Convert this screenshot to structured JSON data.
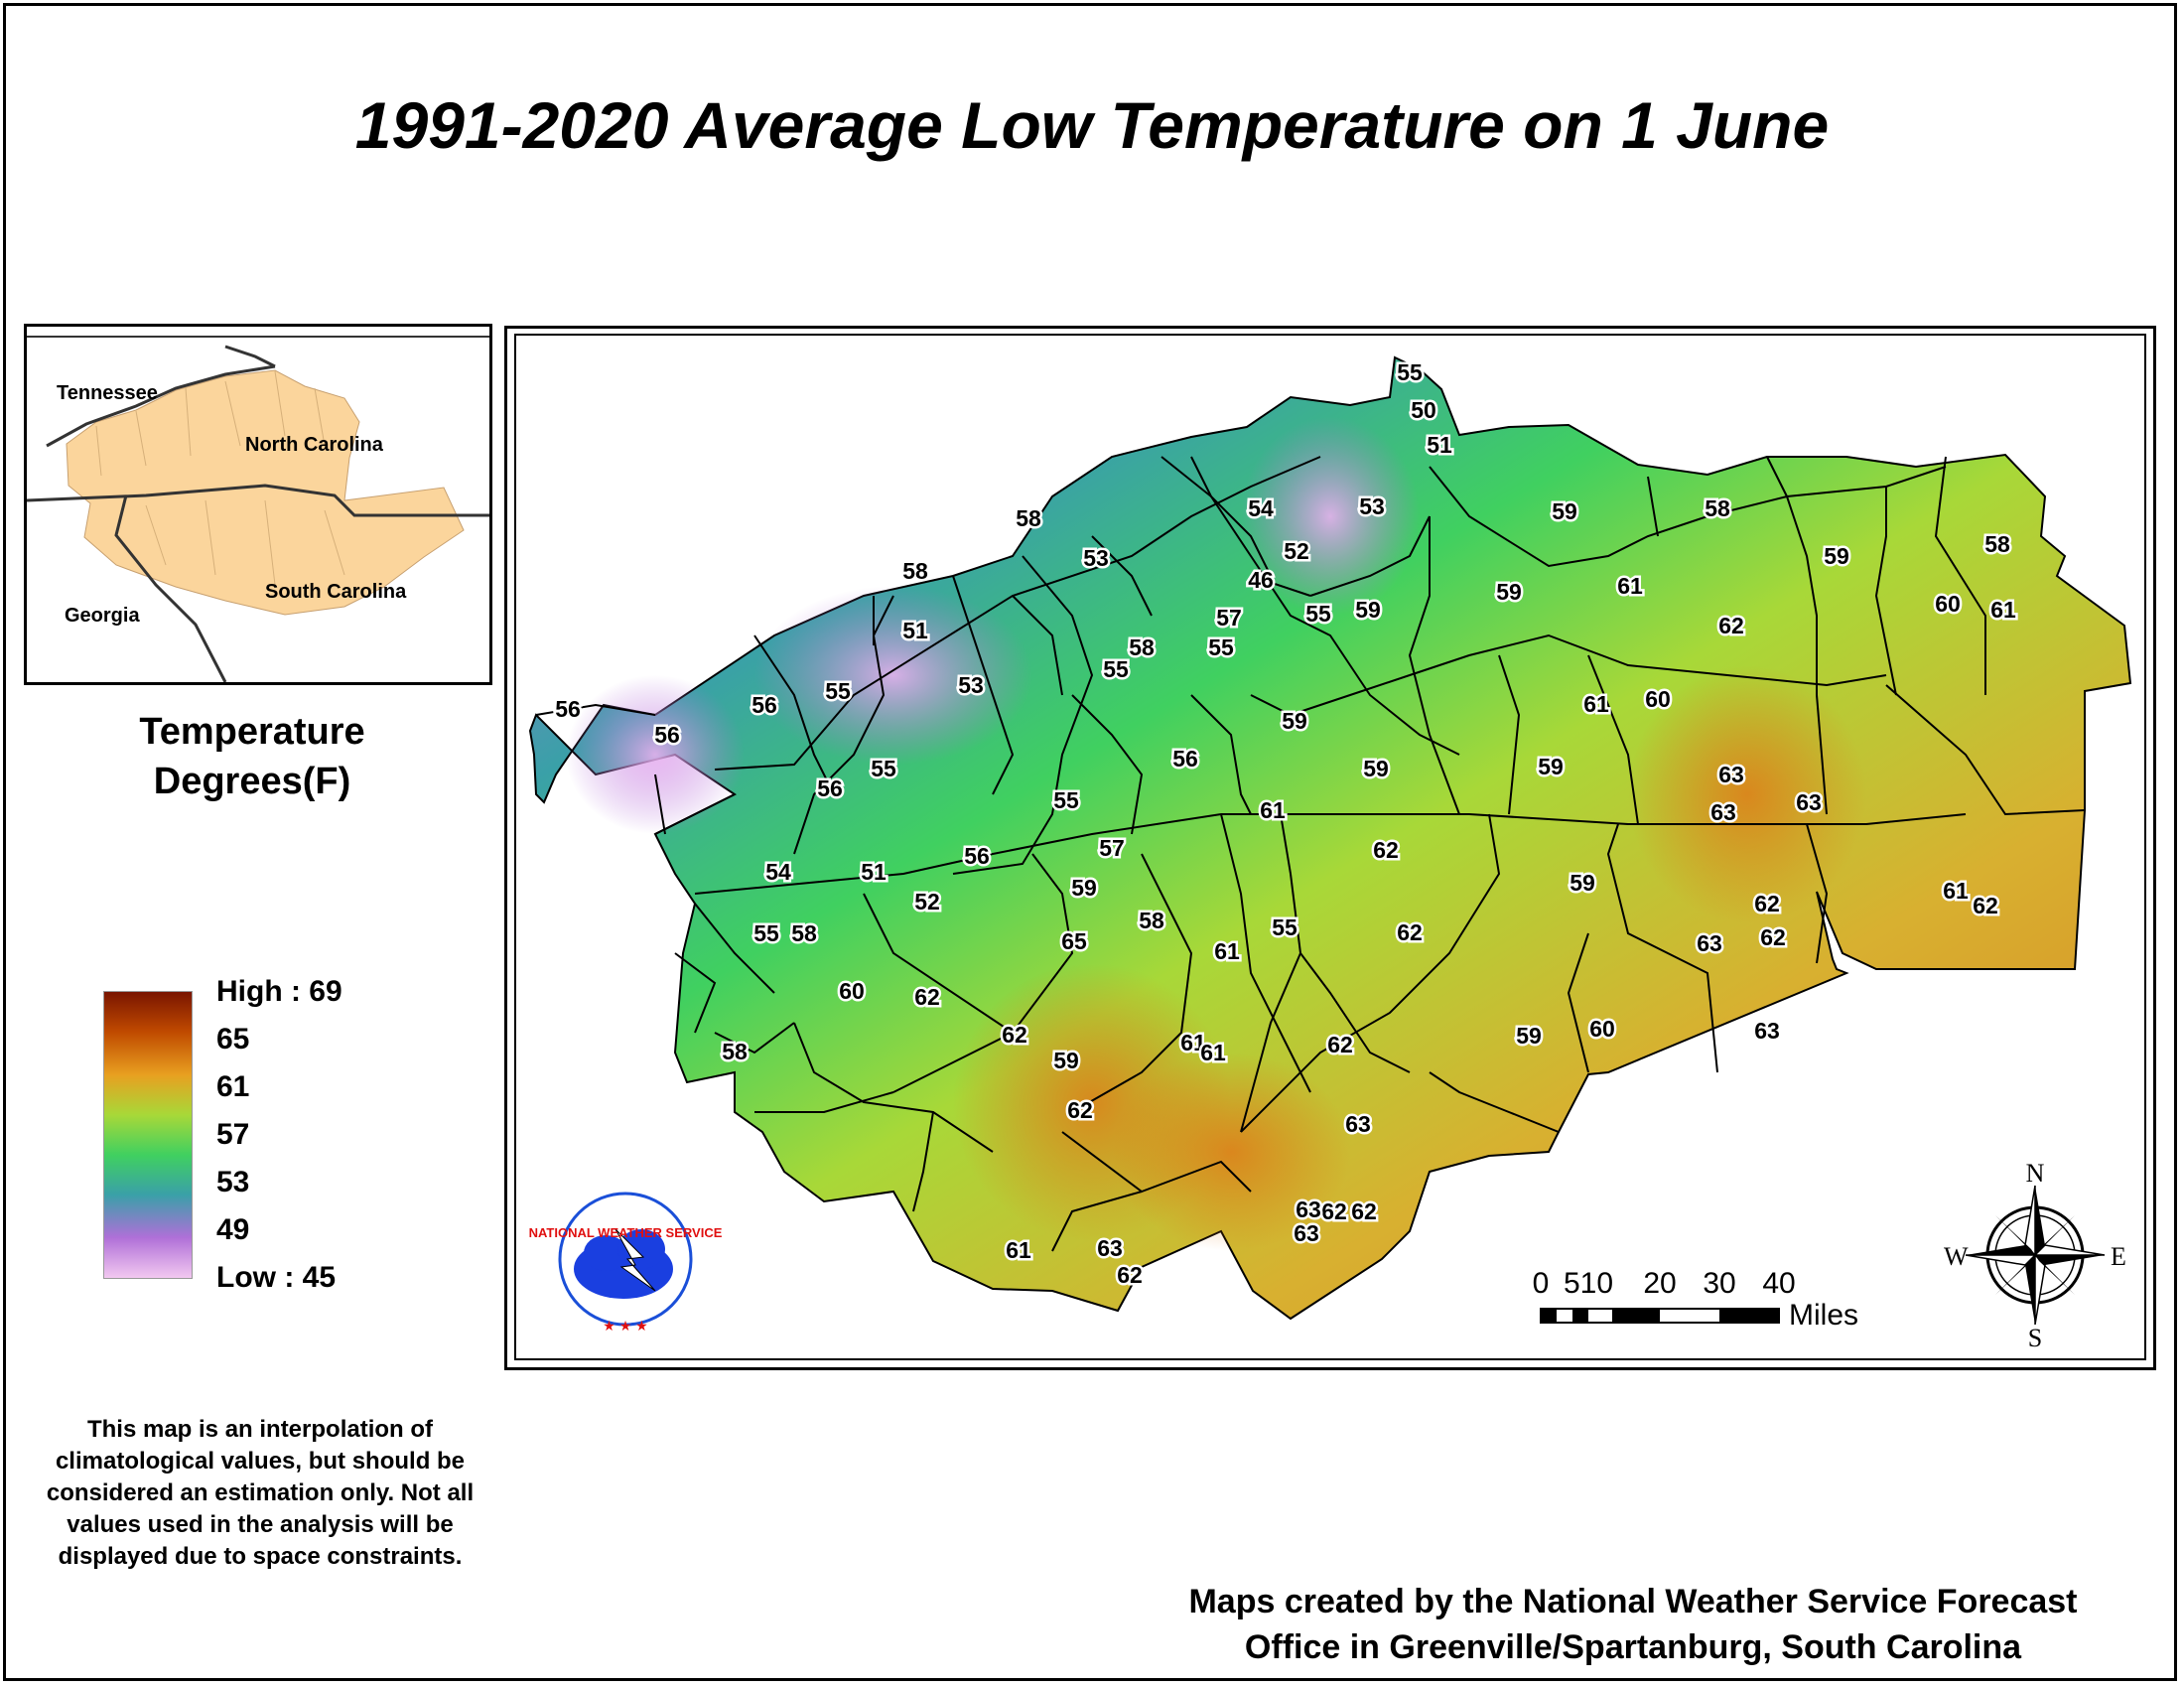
{
  "title": "1991-2020 Average Low Temperature on 1 June",
  "inset": {
    "labels": [
      "Tennessee",
      "North Carolina",
      "Georgia",
      "South Carolina"
    ]
  },
  "legend": {
    "title_line1": "Temperature",
    "title_line2": "Degrees(F)",
    "ticks": [
      "High : 69",
      "65",
      "61",
      "57",
      "53",
      "49",
      "Low : 45"
    ],
    "colors": [
      "#7a1500",
      "#c04a00",
      "#e8a020",
      "#a8d838",
      "#40d060",
      "#3aa0a8",
      "#b070d8",
      "#f2c8f0"
    ]
  },
  "scale_bar": {
    "labels": [
      "0",
      "510",
      "20",
      "30",
      "40"
    ],
    "unit": "Miles"
  },
  "compass": {
    "n": "N",
    "s": "S",
    "e": "E",
    "w": "W"
  },
  "logo_text": "NATIONAL WEATHER SERVICE",
  "disclaimer": "This map is an interpolation of climatological values, but should be considered an estimation only. Not all values used in the analysis will be displayed due to space constraints.",
  "credit_line1": "Maps created by the National Weather Service Forecast",
  "credit_line2": "Office in Greenville/Spartanburg, South Carolina",
  "temperature_labels": [
    "55",
    "50",
    "51",
    "53",
    "54",
    "52",
    "46",
    "58",
    "53",
    "57",
    "55",
    "59",
    "59",
    "58",
    "59",
    "61",
    "62",
    "59",
    "60",
    "61",
    "58",
    "58",
    "51",
    "53",
    "58",
    "55",
    "55",
    "60",
    "61",
    "56",
    "56",
    "56",
    "55",
    "59",
    "59",
    "59",
    "56",
    "56",
    "55",
    "55",
    "61",
    "63",
    "63",
    "63",
    "56",
    "54",
    "51",
    "57",
    "59",
    "62",
    "59",
    "61",
    "58",
    "52",
    "62",
    "62",
    "55",
    "55",
    "58",
    "60",
    "62",
    "65",
    "61",
    "62",
    "63",
    "63",
    "62",
    "59",
    "62",
    "61",
    "60",
    "61",
    "62",
    "58",
    "59",
    "62",
    "63",
    "62",
    "62",
    "63",
    "63",
    "61",
    "62",
    "63"
  ]
}
